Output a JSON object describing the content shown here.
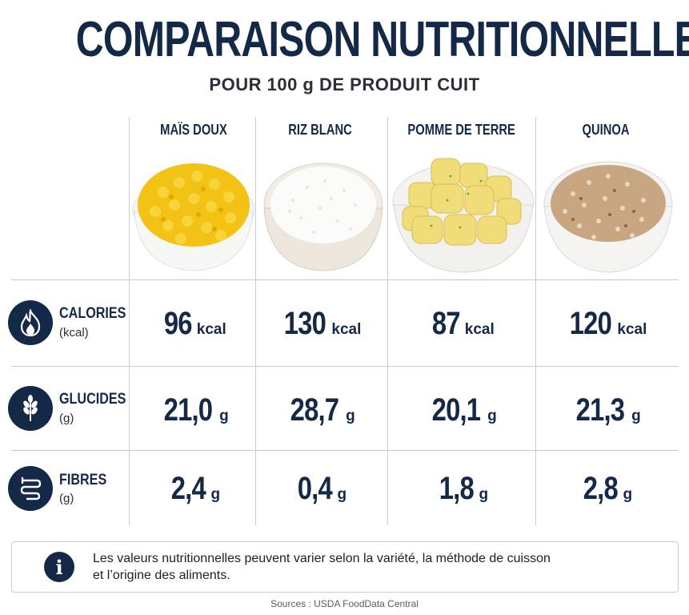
{
  "header": {
    "title": "COMPARAISON NUTRITIONNELLE",
    "subtitle": "POUR 100 g DE PRODUIT CUIT"
  },
  "colors": {
    "navy": "#142847",
    "grid": "#c9ccd2",
    "corn": "#f2c314",
    "potato": "#f0dc78",
    "quinoa": "#c9a682"
  },
  "chart_data": {
    "type": "table",
    "categories": [
      "MAÏS DOUX",
      "RIZ BLANC",
      "POMME DE TERRE",
      "QUINOA"
    ],
    "rows": [
      {
        "label": "CALORIES",
        "unit_label": "(kcal)",
        "icon": "flame-icon",
        "unit": "kcal",
        "values": [
          "96",
          "130",
          "87",
          "120"
        ]
      },
      {
        "label": "GLUCIDES",
        "unit_label": "(g)",
        "icon": "wheat-icon",
        "unit": "g",
        "values": [
          "21,0",
          "28,7",
          "20,1",
          "21,3"
        ]
      },
      {
        "label": "FIBRES",
        "unit_label": "(g)",
        "icon": "intestine-icon",
        "unit": "g",
        "values": [
          "2,4",
          "0,4",
          "1,8",
          "2,8"
        ]
      }
    ]
  },
  "note": {
    "icon": "info-icon",
    "icon_glyph": "i",
    "line1": "Les valeurs nutritionnelles peuvent varier selon la variété, la méthode de cuisson",
    "line2": "et l’origine des aliments."
  },
  "footer": {
    "source": "Sources : USDA FoodData Central"
  }
}
